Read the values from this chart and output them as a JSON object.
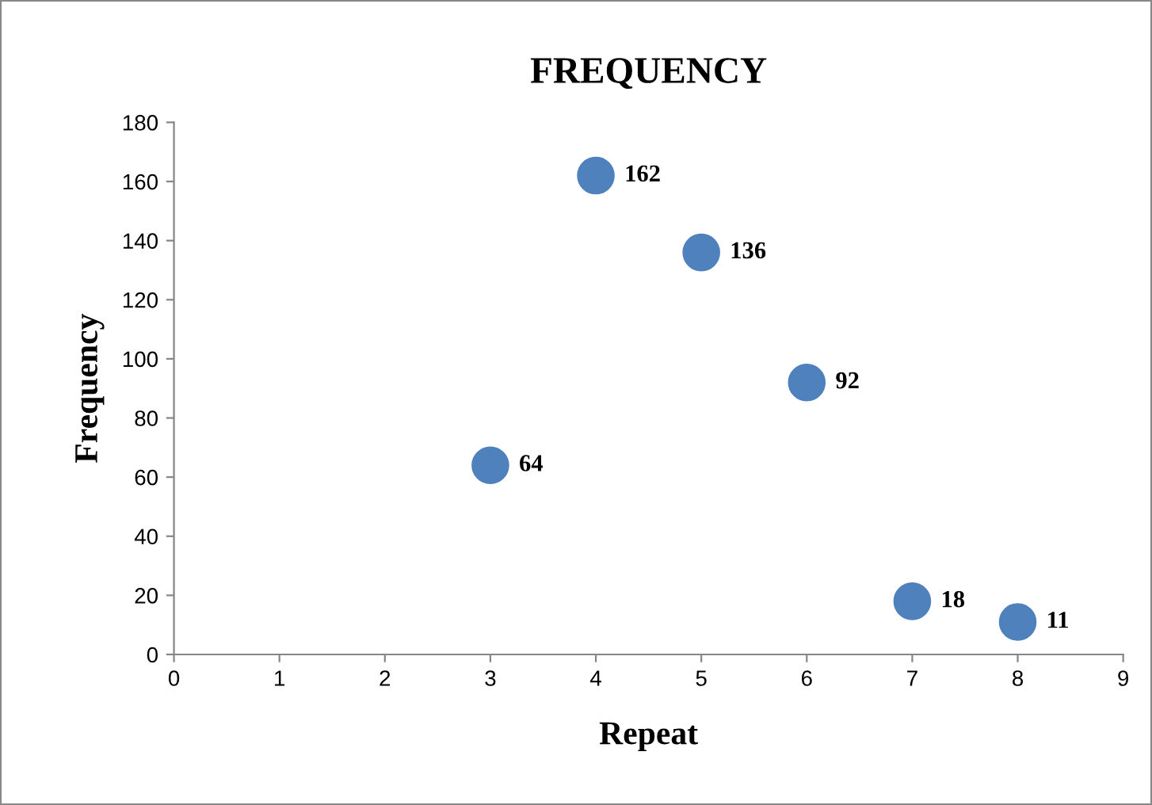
{
  "chart_data": {
    "type": "scatter",
    "title": "FREQUENCY",
    "xlabel": "Repeat",
    "ylabel": "Frequency",
    "x": [
      3,
      4,
      5,
      6,
      7,
      8
    ],
    "series": [
      {
        "color": "#4f81bd",
        "values": [
          64,
          162,
          136,
          92,
          18,
          11
        ]
      }
    ],
    "data_labels": true,
    "marker": "circle",
    "grid": false,
    "legend": false,
    "xlim": [
      0,
      9
    ],
    "xticks": [
      0,
      1,
      2,
      3,
      4,
      5,
      6,
      7,
      8,
      9
    ],
    "ylim": [
      0,
      180
    ],
    "yticks": [
      0,
      20,
      40,
      60,
      80,
      100,
      120,
      140,
      160,
      180
    ]
  }
}
